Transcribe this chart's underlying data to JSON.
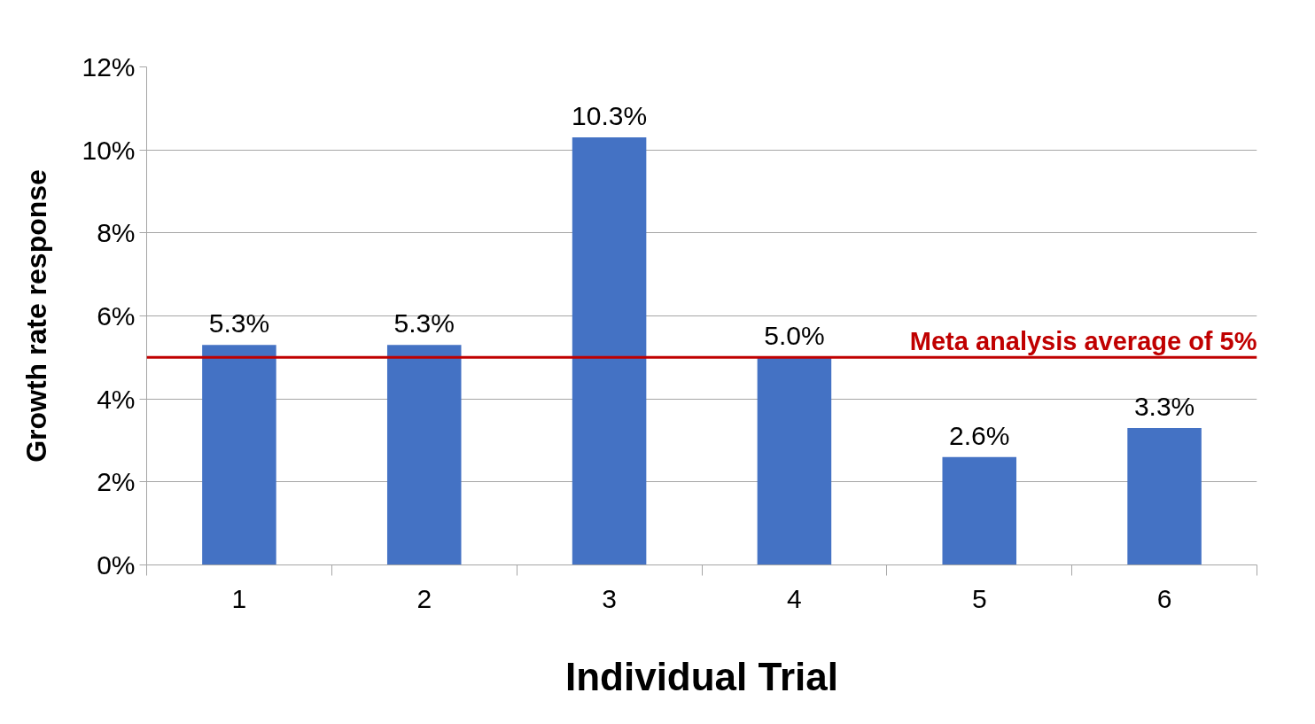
{
  "chart_data": {
    "type": "bar",
    "xlabel": "Individual Trial",
    "ylabel": "Growth rate response",
    "categories": [
      "1",
      "2",
      "3",
      "4",
      "5",
      "6"
    ],
    "values": [
      5.3,
      5.3,
      10.3,
      5.0,
      2.6,
      3.3
    ],
    "value_labels": [
      "5.3%",
      "5.3%",
      "10.3%",
      "5.0%",
      "2.6%",
      "3.3%"
    ],
    "color": "#4472c4",
    "ylim": [
      0,
      12
    ],
    "yticks": [
      {
        "value": 0,
        "label": "0%"
      },
      {
        "value": 2,
        "label": "2%"
      },
      {
        "value": 4,
        "label": "4%"
      },
      {
        "value": 6,
        "label": "6%"
      },
      {
        "value": 8,
        "label": "8%"
      },
      {
        "value": 10,
        "label": "10%"
      },
      {
        "value": 12,
        "label": "12%"
      }
    ],
    "grid": "y",
    "ref_lines": [
      {
        "axis": "y",
        "value": 5,
        "label": "Meta analysis average of 5%",
        "color": "#c00000"
      }
    ]
  }
}
